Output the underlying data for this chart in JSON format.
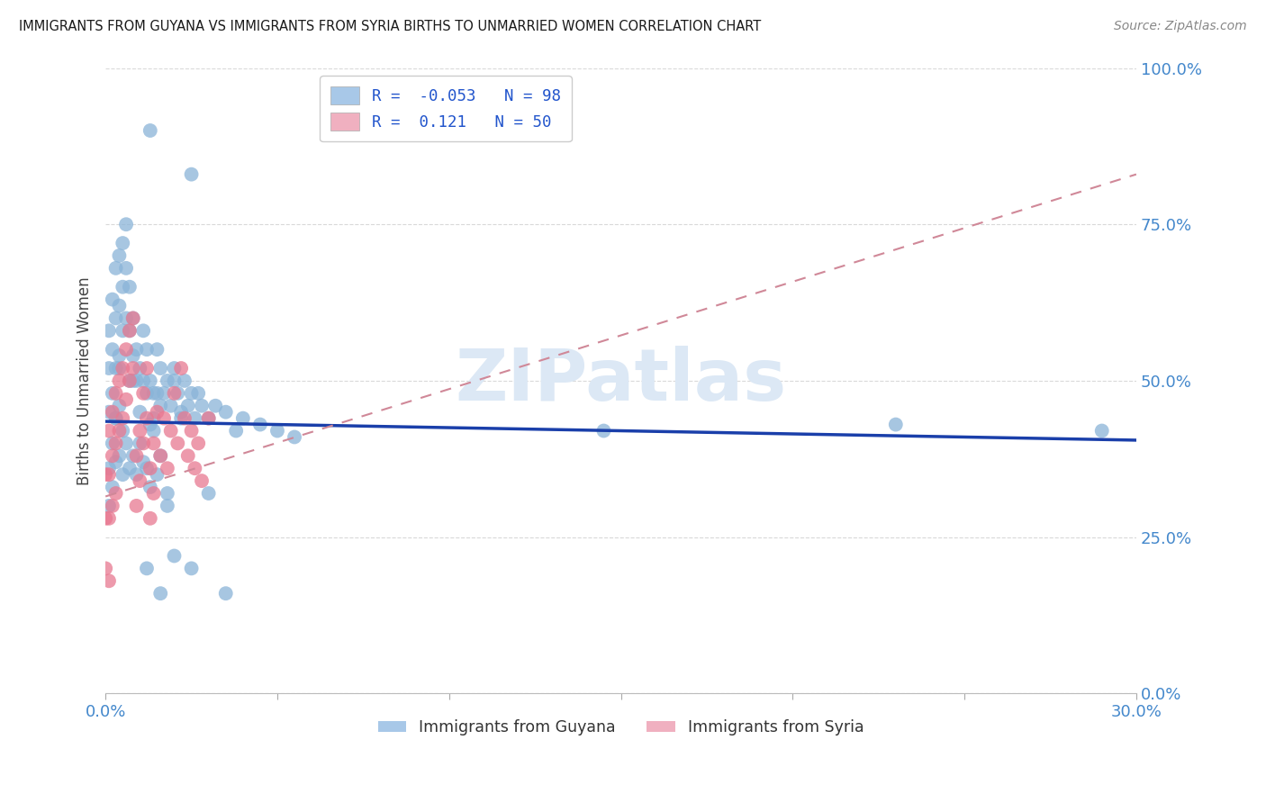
{
  "title": "IMMIGRANTS FROM GUYANA VS IMMIGRANTS FROM SYRIA BIRTHS TO UNMARRIED WOMEN CORRELATION CHART",
  "source": "Source: ZipAtlas.com",
  "ylabel_label": "Births to Unmarried Women",
  "x_min": 0.0,
  "x_max": 0.3,
  "y_min": 0.0,
  "y_max": 1.0,
  "scatter_color_guyana": "#8ab4d8",
  "scatter_color_syria": "#e87890",
  "line_color_guyana": "#1a3faa",
  "line_color_syria": "#d08898",
  "legend_patch_guyana": "#a8c8e8",
  "legend_patch_syria": "#f0b0c0",
  "background_color": "#ffffff",
  "grid_color": "#d0d0d0",
  "title_color": "#1a1a1a",
  "axis_tick_color": "#4488cc",
  "source_color": "#888888",
  "watermark": "ZIPatlas",
  "watermark_color": "#dce8f5",
  "guyana_R": -0.053,
  "guyana_N": 98,
  "syria_R": 0.121,
  "syria_N": 50,
  "guyana_points_x": [
    0.001,
    0.001,
    0.001,
    0.002,
    0.002,
    0.002,
    0.003,
    0.003,
    0.003,
    0.003,
    0.004,
    0.004,
    0.004,
    0.005,
    0.005,
    0.005,
    0.006,
    0.006,
    0.006,
    0.007,
    0.007,
    0.007,
    0.008,
    0.008,
    0.009,
    0.009,
    0.01,
    0.01,
    0.011,
    0.011,
    0.012,
    0.012,
    0.013,
    0.013,
    0.014,
    0.014,
    0.015,
    0.015,
    0.016,
    0.016,
    0.017,
    0.018,
    0.019,
    0.02,
    0.021,
    0.022,
    0.023,
    0.024,
    0.025,
    0.026,
    0.027,
    0.028,
    0.03,
    0.032,
    0.035,
    0.038,
    0.04,
    0.045,
    0.05,
    0.055,
    0.001,
    0.001,
    0.002,
    0.002,
    0.003,
    0.003,
    0.004,
    0.004,
    0.005,
    0.005,
    0.006,
    0.007,
    0.008,
    0.009,
    0.01,
    0.011,
    0.012,
    0.013,
    0.015,
    0.018,
    0.02,
    0.025,
    0.03,
    0.035,
    0.014,
    0.016,
    0.018,
    0.02,
    0.022,
    0.145,
    0.23,
    0.29,
    0.013,
    0.025,
    0.004,
    0.008,
    0.012,
    0.016
  ],
  "guyana_points_y": [
    0.58,
    0.52,
    0.45,
    0.63,
    0.55,
    0.48,
    0.68,
    0.6,
    0.52,
    0.44,
    0.7,
    0.62,
    0.54,
    0.72,
    0.65,
    0.58,
    0.75,
    0.68,
    0.6,
    0.65,
    0.58,
    0.5,
    0.6,
    0.54,
    0.55,
    0.5,
    0.52,
    0.45,
    0.58,
    0.5,
    0.55,
    0.48,
    0.5,
    0.43,
    0.48,
    0.42,
    0.55,
    0.48,
    0.52,
    0.46,
    0.48,
    0.5,
    0.46,
    0.52,
    0.48,
    0.45,
    0.5,
    0.46,
    0.48,
    0.44,
    0.48,
    0.46,
    0.44,
    0.46,
    0.45,
    0.42,
    0.44,
    0.43,
    0.42,
    0.41,
    0.36,
    0.3,
    0.4,
    0.33,
    0.44,
    0.37,
    0.46,
    0.38,
    0.42,
    0.35,
    0.4,
    0.36,
    0.38,
    0.35,
    0.4,
    0.37,
    0.36,
    0.33,
    0.35,
    0.32,
    0.5,
    0.2,
    0.32,
    0.16,
    0.44,
    0.38,
    0.3,
    0.22,
    0.44,
    0.42,
    0.43,
    0.42,
    0.9,
    0.83,
    0.52,
    0.5,
    0.2,
    0.16
  ],
  "syria_points_x": [
    0.0,
    0.0,
    0.0,
    0.001,
    0.001,
    0.001,
    0.001,
    0.002,
    0.002,
    0.002,
    0.003,
    0.003,
    0.003,
    0.004,
    0.004,
    0.005,
    0.005,
    0.006,
    0.006,
    0.007,
    0.007,
    0.008,
    0.008,
    0.009,
    0.009,
    0.01,
    0.01,
    0.011,
    0.011,
    0.012,
    0.012,
    0.013,
    0.013,
    0.014,
    0.014,
    0.015,
    0.016,
    0.017,
    0.018,
    0.019,
    0.02,
    0.021,
    0.022,
    0.023,
    0.024,
    0.025,
    0.026,
    0.027,
    0.028,
    0.03
  ],
  "syria_points_y": [
    0.35,
    0.28,
    0.2,
    0.42,
    0.35,
    0.28,
    0.18,
    0.45,
    0.38,
    0.3,
    0.48,
    0.4,
    0.32,
    0.5,
    0.42,
    0.52,
    0.44,
    0.55,
    0.47,
    0.58,
    0.5,
    0.6,
    0.52,
    0.38,
    0.3,
    0.42,
    0.34,
    0.48,
    0.4,
    0.52,
    0.44,
    0.36,
    0.28,
    0.4,
    0.32,
    0.45,
    0.38,
    0.44,
    0.36,
    0.42,
    0.48,
    0.4,
    0.52,
    0.44,
    0.38,
    0.42,
    0.36,
    0.4,
    0.34,
    0.44
  ]
}
